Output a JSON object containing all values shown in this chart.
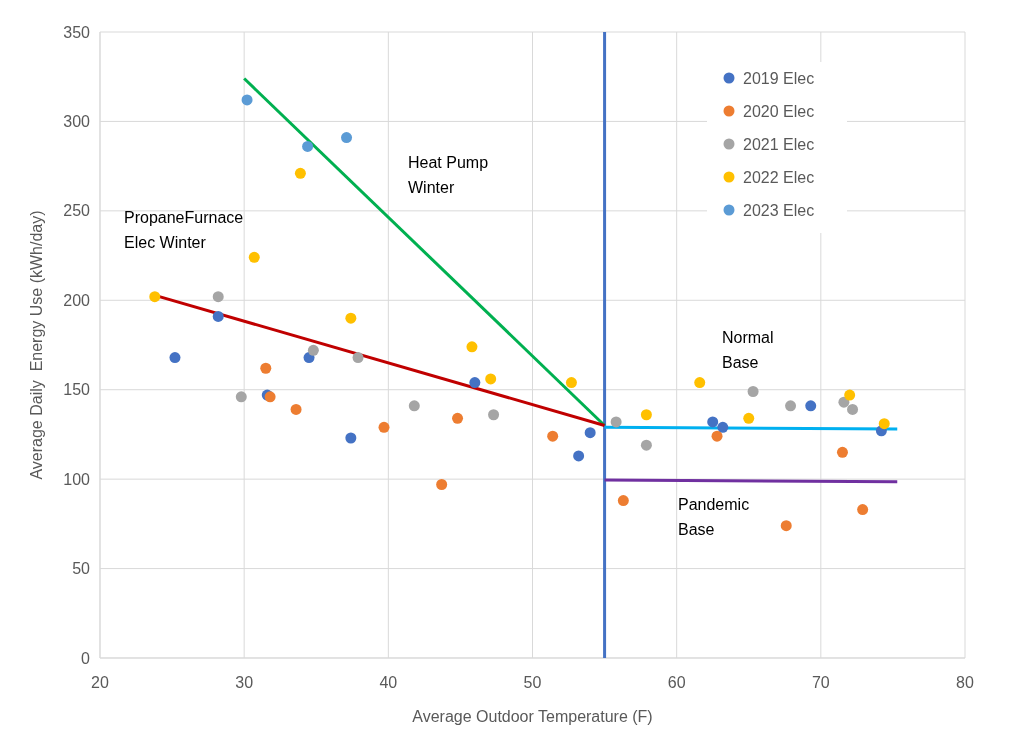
{
  "chart_data": {
    "type": "scatter",
    "xlabel": "Average Outdoor Temperature (F)",
    "ylabel": "Average Daily  Energy Use (kWh/day)",
    "xlim": [
      20,
      80
    ],
    "xticks": [
      20,
      30,
      40,
      50,
      60,
      70,
      80
    ],
    "ylim": [
      0,
      350
    ],
    "yticks": [
      0,
      50,
      100,
      150,
      200,
      250,
      300,
      350
    ],
    "grid": true,
    "legend": "top right",
    "marker": "circle",
    "series": [
      {
        "name": "2019 Elec",
        "color": "#4472c4",
        "x": [
          25.2,
          28.2,
          31.6,
          34.5,
          37.4,
          46,
          53.2,
          54,
          62.5,
          63.2,
          69.3,
          74.2
        ],
        "values": [
          168,
          191,
          147,
          168,
          123,
          154,
          113,
          126,
          132,
          129,
          141,
          127
        ]
      },
      {
        "name": "2020 Elec",
        "color": "#ed7d31",
        "x": [
          31.5,
          31.8,
          33.6,
          39.7,
          43.7,
          44.8,
          51.4,
          56.3,
          62.8,
          67.6,
          71.5,
          72.9
        ],
        "values": [
          162,
          146,
          139,
          129,
          97,
          134,
          124,
          88,
          124,
          74,
          115,
          83
        ]
      },
      {
        "name": "2021 Elec",
        "color": "#a5a5a5",
        "x": [
          28.2,
          29.8,
          34.8,
          37.9,
          41.8,
          47.3,
          55.8,
          57.9,
          65.3,
          67.9,
          71.6,
          72.2
        ],
        "values": [
          202,
          146,
          172,
          168,
          141,
          136,
          132,
          119,
          149,
          141,
          143,
          139
        ]
      },
      {
        "name": "2022 Elec",
        "color": "#ffc000",
        "x": [
          23.8,
          30.7,
          33.9,
          37.4,
          45.8,
          47.1,
          52.7,
          57.9,
          61.6,
          65,
          72,
          74.4
        ],
        "values": [
          202,
          224,
          271,
          190,
          174,
          156,
          154,
          136,
          154,
          134,
          147,
          131
        ]
      },
      {
        "name": "2023 Elec",
        "color": "#5b9bd5",
        "x": [
          30.2,
          34.4,
          37.1
        ],
        "values": [
          312,
          286,
          291
        ]
      },
      {
        "type": "line",
        "marker": "none",
        "color": "#00b050",
        "x": [
          30,
          55
        ],
        "values": [
          324,
          130
        ]
      },
      {
        "type": "line",
        "marker": "none",
        "color": "#c00000",
        "x": [
          23.7,
          55
        ],
        "values": [
          203,
          130
        ]
      },
      {
        "type": "line",
        "marker": "none",
        "color": "#00b0f0",
        "x": [
          55,
          75.3
        ],
        "values": [
          129,
          128
        ]
      },
      {
        "type": "line",
        "marker": "none",
        "color": "#7030a0",
        "x": [
          55,
          75.3
        ],
        "values": [
          99.5,
          98.5
        ]
      }
    ],
    "ref_lines": [
      {
        "axis": "x",
        "value": 55,
        "color": "#4472c4"
      }
    ],
    "annotations": [
      "Heat Pump\nWinter",
      "PropaneFurnace\nElec Winter",
      "Normal\nBase",
      "Pandemic\nBase"
    ]
  }
}
